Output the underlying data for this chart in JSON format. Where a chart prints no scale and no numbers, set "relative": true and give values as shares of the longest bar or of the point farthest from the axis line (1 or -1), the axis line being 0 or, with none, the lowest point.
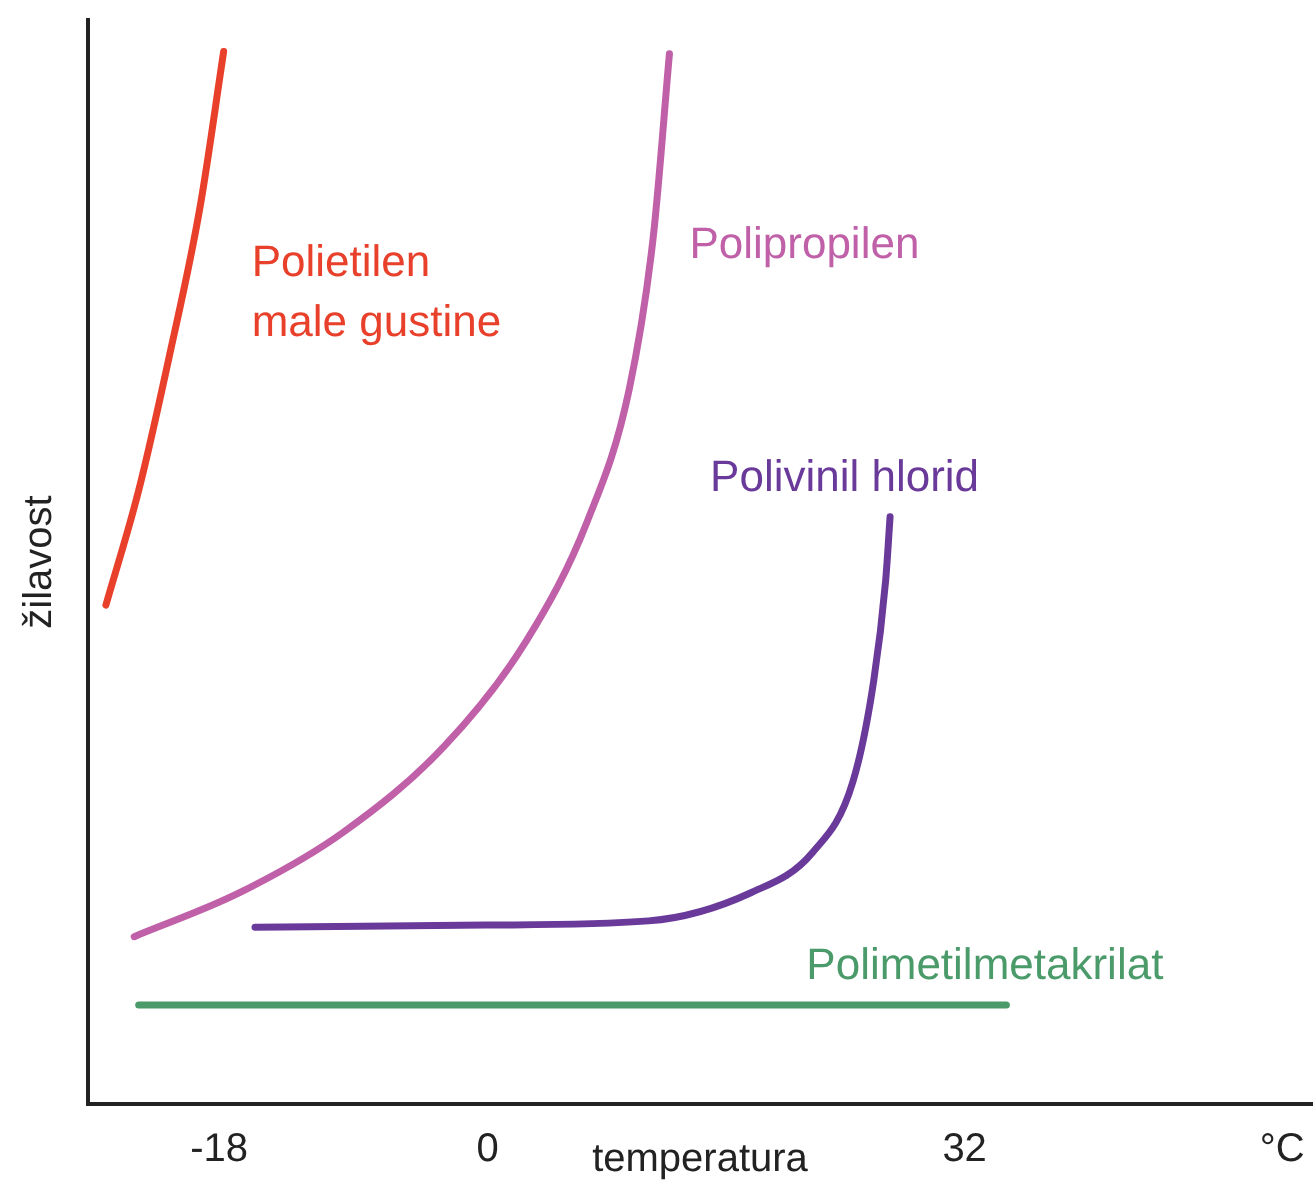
{
  "chart_data": {
    "type": "line",
    "relative": true,
    "xlabel": "temperatura",
    "ylabel": "žilavost",
    "xlim": [
      -26.8,
      55.3
    ],
    "xticks": [
      -18,
      0,
      32,
      {
        "value": 53.3,
        "label": "°C"
      }
    ],
    "grid": false,
    "legend": false,
    "marker": "none",
    "line_style": "solid",
    "series": [
      {
        "name": "Polietilen male gustine",
        "color": "#e8402a",
        "x": [
          -25.6,
          -23.4,
          -21.4,
          -19.3,
          -17.7
        ],
        "values": [
          0.474,
          0.583,
          0.707,
          0.851,
          1.0
        ]
      },
      {
        "name": "Polipropilen",
        "color": "#c060a8",
        "x": [
          -23.7,
          -16.6,
          -9.7,
          -2.9,
          2.6,
          6.7,
          9.5,
          11.1,
          12.2
        ],
        "values": [
          0.159,
          0.201,
          0.258,
          0.34,
          0.44,
          0.554,
          0.679,
          0.822,
          0.998
        ]
      },
      {
        "name": "Polivinil hlorid",
        "color": "#6a3a9a",
        "x": [
          -15.6,
          -0.1,
          10.8,
          17.7,
          21.8,
          24.5,
          25.9,
          26.7,
          27.0
        ],
        "values": [
          0.168,
          0.17,
          0.174,
          0.201,
          0.239,
          0.306,
          0.402,
          0.497,
          0.558
        ]
      },
      {
        "name": "Polimetilmetakrilat",
        "color": "#4a9a6a",
        "x": [
          -23.4,
          34.8
        ],
        "values": [
          0.094,
          0.094
        ]
      }
    ]
  }
}
